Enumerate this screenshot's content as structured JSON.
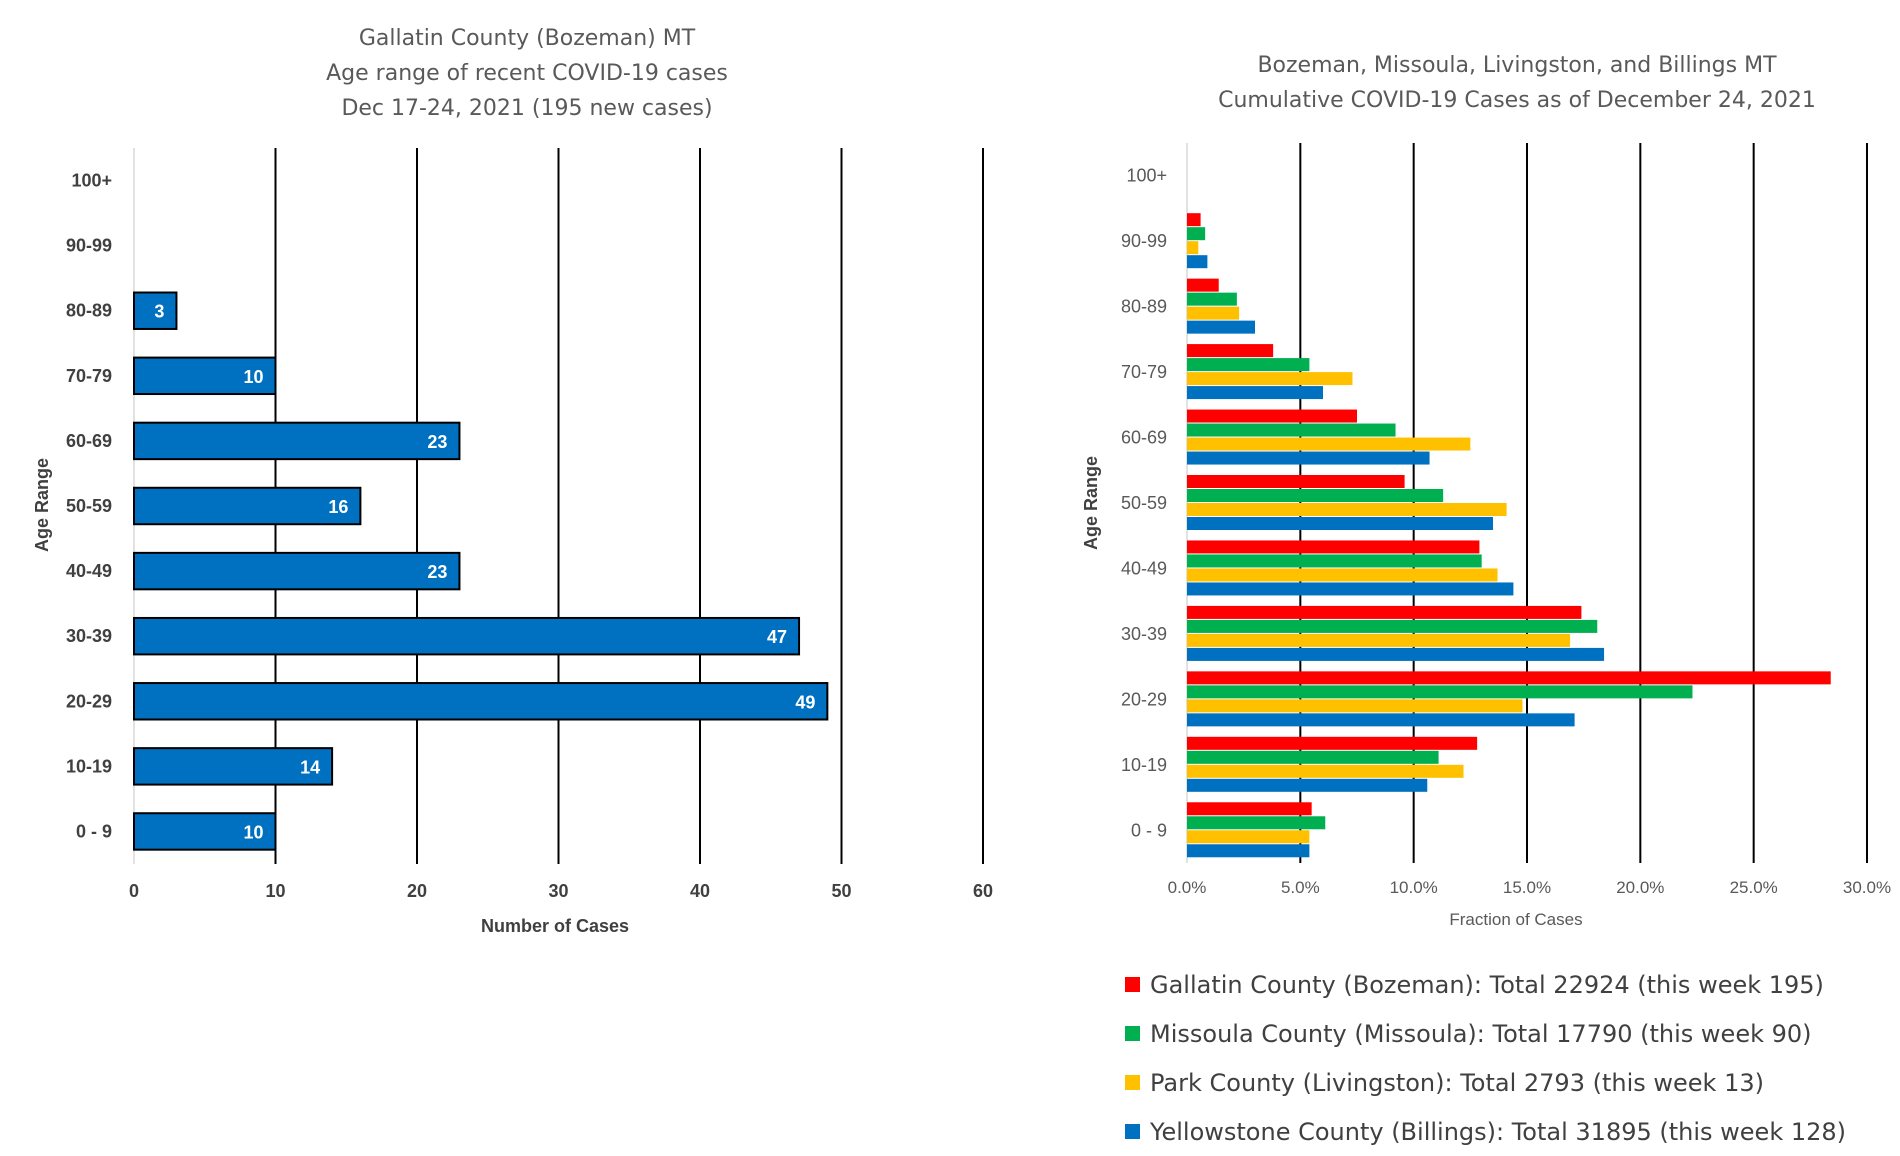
{
  "chart_data": [
    {
      "type": "bar",
      "orientation": "horizontal",
      "title": [
        "Gallatin County (Bozeman) MT",
        "Age range of recent COVID-19 cases",
        "Dec 17-24, 2021 (195 new cases)"
      ],
      "xlabel": "Number of Cases",
      "ylabel": "Age Range",
      "categories": [
        "0 - 9",
        "10-19",
        "20-29",
        "30-39",
        "40-49",
        "50-59",
        "60-69",
        "70-79",
        "80-89",
        "90-99",
        "100+"
      ],
      "values": [
        10,
        14,
        49,
        47,
        23,
        16,
        23,
        10,
        3,
        null,
        null
      ],
      "data_labels": [
        "10",
        "14",
        "49",
        "47",
        "23",
        "16",
        "23",
        "10",
        "3",
        "",
        ""
      ],
      "xlim": [
        0,
        60
      ],
      "xticks": [
        "0",
        "10",
        "20",
        "30",
        "40",
        "50",
        "60"
      ],
      "grid": "vertical",
      "bar_color": "#0070C0"
    },
    {
      "type": "bar",
      "orientation": "horizontal",
      "title": [
        "Bozeman, Missoula, Livingston, and Billings MT",
        "Cumulative COVID-19 Cases as of December 24, 2021"
      ],
      "xlabel": "Fraction of Cases",
      "ylabel": "Age Range",
      "categories": [
        "0 - 9",
        "10-19",
        "20-29",
        "30-39",
        "40-49",
        "50-59",
        "60-69",
        "70-79",
        "80-89",
        "90-99",
        "100+"
      ],
      "series": [
        {
          "name": "Gallatin County (Bozeman): Total 22924 (this week 195)",
          "color": "#FF0000",
          "values": [
            5.5,
            12.8,
            28.4,
            17.4,
            12.9,
            9.6,
            7.5,
            3.8,
            1.4,
            0.6,
            0.0
          ]
        },
        {
          "name": "Missoula County (Missoula): Total 17790 (this week 90)",
          "color": "#00B050",
          "values": [
            6.1,
            11.1,
            22.3,
            18.1,
            13.0,
            11.3,
            9.2,
            5.4,
            2.2,
            0.8,
            0.0
          ]
        },
        {
          "name": "Park County (Livingston): Total 2793 (this week 13)",
          "color": "#FFC000",
          "values": [
            5.4,
            12.2,
            14.8,
            16.9,
            13.7,
            14.1,
            12.5,
            7.3,
            2.3,
            0.5,
            0.0
          ]
        },
        {
          "name": "Yellowstone County (Billings): Total 31895 (this week 128)",
          "color": "#0070C0",
          "values": [
            5.4,
            10.6,
            17.1,
            18.4,
            14.4,
            13.5,
            10.7,
            6.0,
            3.0,
            0.9,
            0.0
          ]
        }
      ],
      "xlim": [
        0,
        30
      ],
      "xticks": [
        "0.0%",
        "5.0%",
        "10.0%",
        "15.0%",
        "20.0%",
        "25.0%",
        "30.0%"
      ],
      "grid": "vertical",
      "legend": "bottom"
    }
  ]
}
